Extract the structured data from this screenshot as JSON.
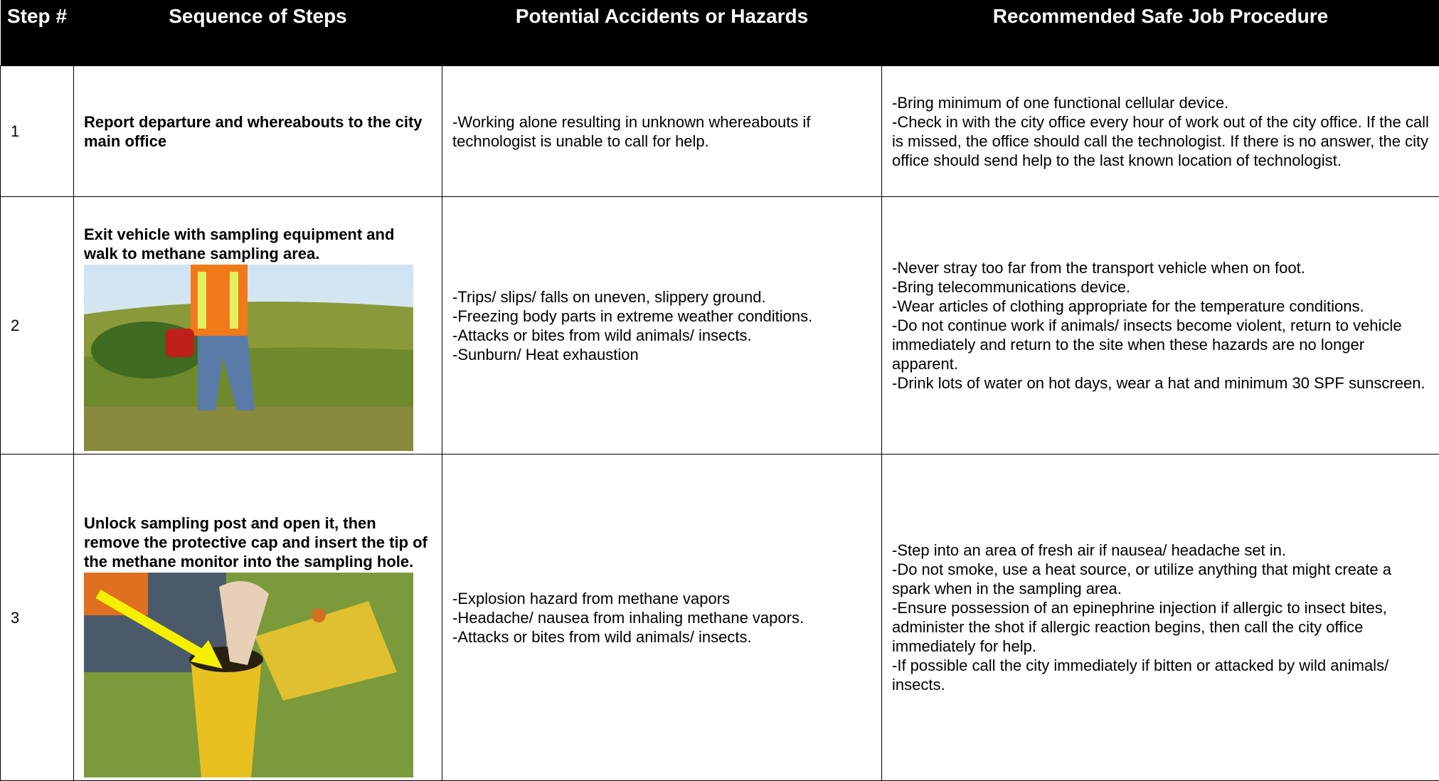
{
  "table": {
    "header": [
      "Step #",
      "Sequence of Steps",
      "Potential Accidents or Hazards",
      "Recommended Safe Job Procedure"
    ],
    "rows": [
      {
        "step": "1",
        "sequence": "Report departure and whereabouts to the city main office",
        "hazards": [
          "-Working alone resulting in unknown whereabouts if technologist is unable to call for help."
        ],
        "procedure": [
          "-Bring minimum of one functional cellular device.",
          "-Check in with the city office every hour of work out of the city office. If the call is missed, the office should call the technologist. If there is no answer, the city office should send help to the last known location of technologist."
        ]
      },
      {
        "step": "2",
        "sequence": "Exit vehicle with sampling equipment and walk to methane sampling area.",
        "hazards": [
          "-Trips/ slips/ falls on uneven, slippery ground.",
          "-Freezing body parts in extreme weather conditions.",
          "-Attacks or bites from wild animals/ insects.",
          "-Sunburn/ Heat exhaustion"
        ],
        "procedure": [
          "-Never stray too far from the transport vehicle when on foot.",
          "-Bring telecommunications device.",
          "-Wear articles of clothing appropriate for the temperature conditions.",
          "-Do not continue work if animals/ insects become violent, return to vehicle immediately and return to the site when these hazards are no longer apparent.",
          "-Drink lots of water on hot days, wear a hat and minimum 30 SPF sunscreen."
        ]
      },
      {
        "step": "3",
        "sequence": "Unlock sampling post and open it, then remove the protective cap and insert the tip of the methane monitor into the sampling hole.",
        "hazards": [
          "-Explosion hazard from methane vapors",
          "-Headache/ nausea from inhaling methane vapors.",
          "-Attacks or bites from wild animals/ insects."
        ],
        "procedure": [
          "-Step into an area of fresh air if nausea/ headache set in.",
          "-Do not smoke, use a heat source, or utilize anything that might create a spark when in the sampling area.",
          "-Ensure possession of an epinephrine injection if allergic to insect bites, administer the shot if allergic reaction begins, then call the city office immediately for help.",
          "-If possible call the city immediately if bitten or attacked by wild animals/ insects."
        ]
      }
    ]
  }
}
